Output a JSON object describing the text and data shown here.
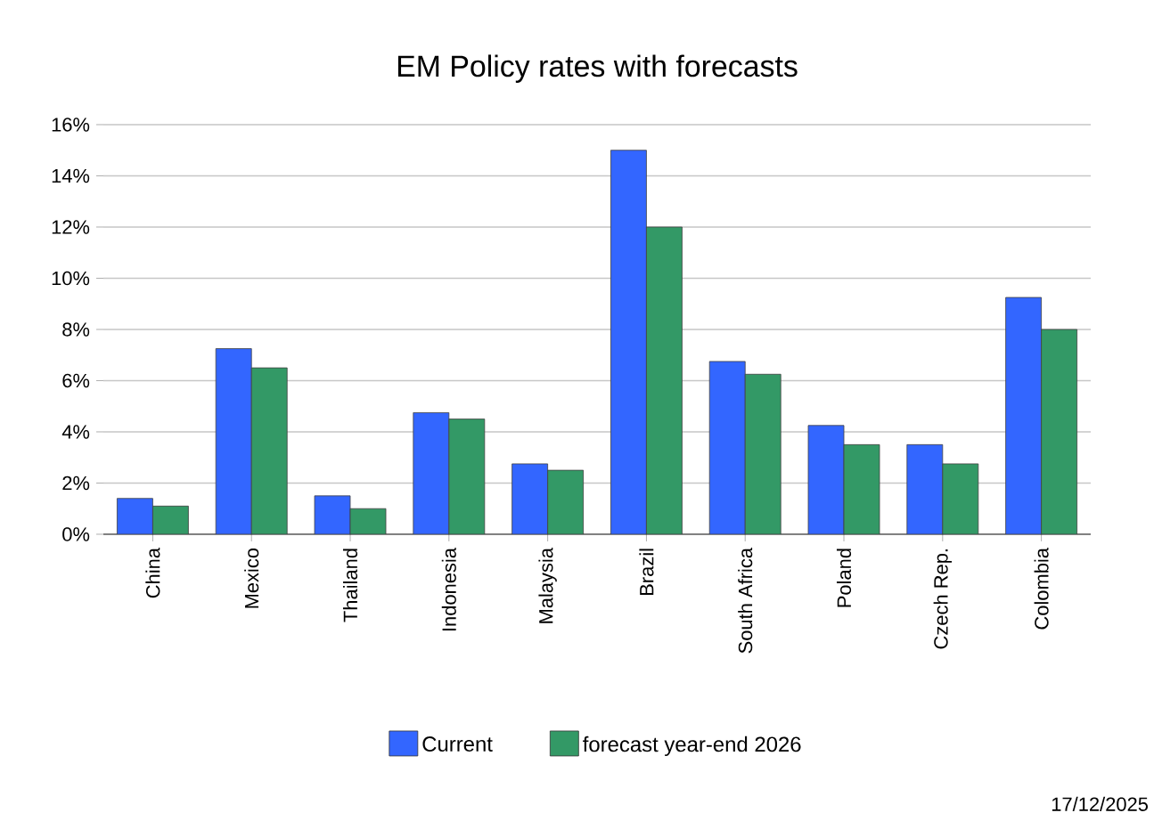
{
  "chart_data": {
    "type": "bar",
    "title": "EM Policy rates with forecasts",
    "categories": [
      "China",
      "Mexico",
      "Thailand",
      "Indonesia",
      "Malaysia",
      "Brazil",
      "South Africa",
      "Poland",
      "Czech Rep.",
      "Colombia"
    ],
    "series": [
      {
        "name": "Current",
        "color": "#3366ff",
        "values": [
          1.4,
          7.25,
          1.5,
          4.75,
          2.75,
          15,
          6.75,
          4.25,
          3.5,
          9.25
        ]
      },
      {
        "name": "forecast year-end 2026",
        "color": "#339966",
        "values": [
          1.1,
          6.5,
          1.0,
          4.5,
          2.5,
          12,
          6.25,
          3.5,
          2.75,
          8.0
        ]
      }
    ],
    "ylim": [
      0,
      16
    ],
    "yticks": [
      {
        "value": 0,
        "label": "0%"
      },
      {
        "value": 2,
        "label": "2%"
      },
      {
        "value": 4,
        "label": "4%"
      },
      {
        "value": 6,
        "label": "6%"
      },
      {
        "value": 8,
        "label": "8%"
      },
      {
        "value": 10,
        "label": "10%"
      },
      {
        "value": 12,
        "label": "12%"
      },
      {
        "value": 14,
        "label": "14%"
      },
      {
        "value": 16,
        "label": "16%"
      }
    ],
    "grid": "y",
    "legend": "bottom",
    "annotations": [
      "17/12/2025"
    ]
  }
}
